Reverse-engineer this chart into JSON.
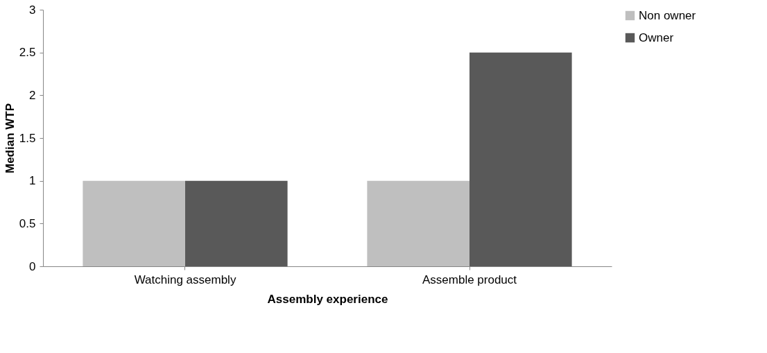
{
  "chart_data": {
    "type": "bar",
    "xlabel": "Assembly experience",
    "ylabel": "Median WTP",
    "categories": [
      "Watching assembly",
      "Assemble product"
    ],
    "series": [
      {
        "name": "Non owner",
        "color": "#bfbfbf",
        "values": [
          1,
          1
        ]
      },
      {
        "name": "Owner",
        "color": "#595959",
        "values": [
          1,
          2.5
        ]
      }
    ],
    "ylim": [
      0,
      3
    ],
    "yticks": [
      0,
      0.5,
      1,
      1.5,
      2,
      2.5,
      3
    ],
    "grid": false,
    "legend": "right"
  }
}
